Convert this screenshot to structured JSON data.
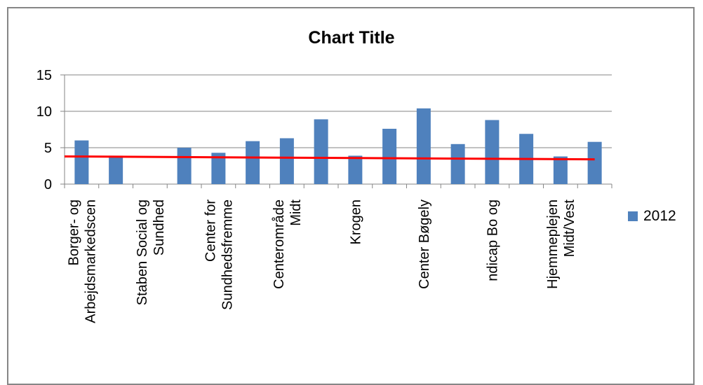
{
  "chart_data": {
    "type": "bar",
    "title": "Chart Title",
    "categories": [
      [
        "Borger- og",
        "Arbejdsmarkedscen"
      ],
      [],
      [
        "Staben Social og",
        "Sundhed"
      ],
      [],
      [
        "Center for",
        "Sundhedsfremme"
      ],
      [],
      [
        "Centerområde",
        "Midt"
      ],
      [],
      [
        "Krogen"
      ],
      [],
      [
        "Center Bøgely"
      ],
      [],
      [
        "ndicap Bo og"
      ],
      [],
      [
        "Hjemmeplejen",
        "Midt/Vest"
      ],
      []
    ],
    "series": [
      {
        "name": "2012",
        "color": "#4F81BD",
        "values": [
          6.0,
          3.9,
          null,
          5.0,
          4.3,
          5.9,
          6.3,
          8.9,
          3.9,
          7.6,
          10.4,
          5.5,
          8.8,
          6.9,
          3.8,
          5.8
        ]
      }
    ],
    "trendline": {
      "color": "#FF0000",
      "start": 3.8,
      "end": 3.4
    },
    "ylim": [
      0,
      15
    ],
    "yticks": [
      0,
      5,
      10,
      15
    ],
    "grid": true,
    "legend_position": "right"
  }
}
